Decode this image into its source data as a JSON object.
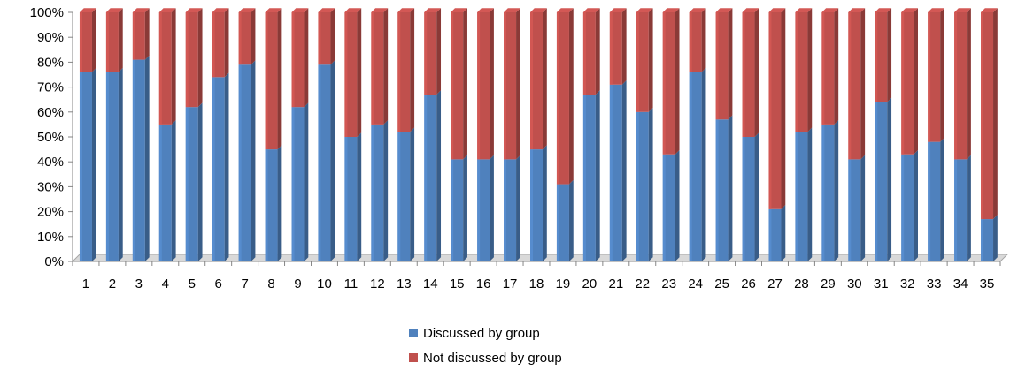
{
  "chart_data": {
    "type": "bar",
    "stacked": true,
    "percent_stacked": true,
    "title": "",
    "xlabel": "",
    "ylabel": "",
    "ylim": [
      0,
      100
    ],
    "yticks": [
      "0%",
      "10%",
      "20%",
      "30%",
      "40%",
      "50%",
      "60%",
      "70%",
      "80%",
      "90%",
      "100%"
    ],
    "categories": [
      "1",
      "2",
      "3",
      "4",
      "5",
      "6",
      "7",
      "8",
      "9",
      "10",
      "11",
      "12",
      "13",
      "14",
      "15",
      "16",
      "17",
      "18",
      "19",
      "20",
      "21",
      "22",
      "23",
      "24",
      "25",
      "26",
      "27",
      "28",
      "29",
      "30",
      "31",
      "32",
      "33",
      "34",
      "35"
    ],
    "series": [
      {
        "name": "Discussed by group",
        "color": "#4F81BD",
        "values": [
          76,
          76,
          81,
          55,
          62,
          74,
          79,
          45,
          62,
          79,
          50,
          55,
          52,
          67,
          41,
          41,
          41,
          45,
          31,
          67,
          71,
          60,
          43,
          76,
          57,
          50,
          21,
          52,
          55,
          41,
          64,
          43,
          48,
          41,
          17
        ]
      },
      {
        "name": "Not discussed by group",
        "color": "#C0504D",
        "values": [
          24,
          24,
          19,
          45,
          38,
          26,
          21,
          55,
          38,
          21,
          50,
          45,
          48,
          33,
          59,
          59,
          59,
          55,
          69,
          33,
          29,
          40,
          57,
          24,
          43,
          50,
          79,
          48,
          45,
          59,
          36,
          57,
          52,
          59,
          83
        ]
      }
    ],
    "grid": false,
    "legend_position": "bottom"
  }
}
